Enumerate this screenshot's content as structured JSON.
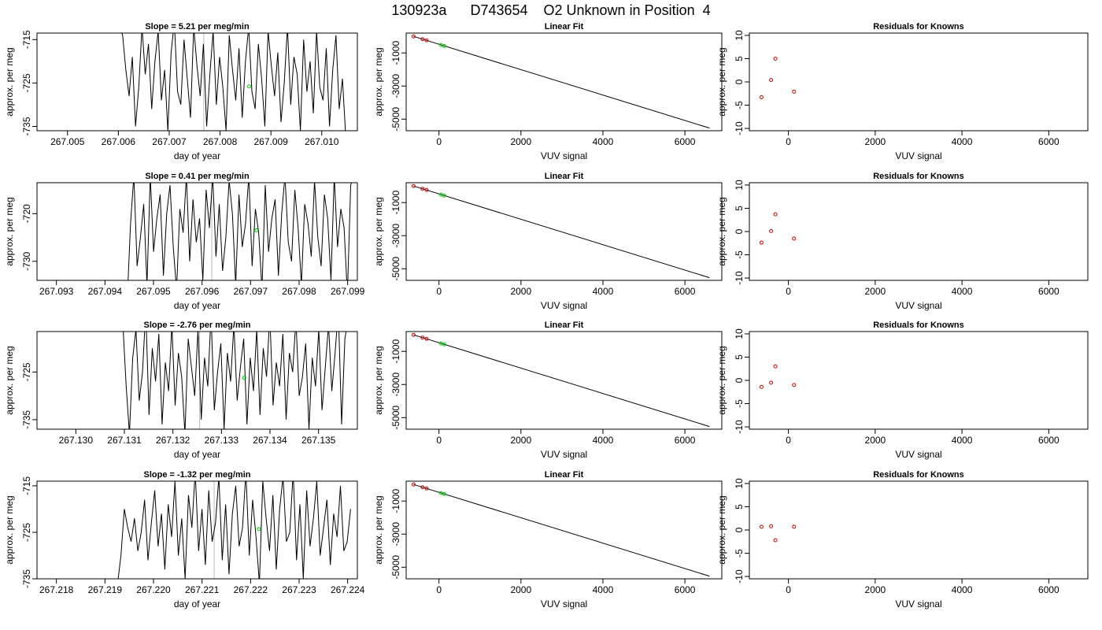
{
  "page_title": "130923a      D743654    O2 Unknown in Position  4",
  "colors": {
    "line": "#000000",
    "known_points": "#cc0000",
    "unknown_points": "#00cc00",
    "gray_marker": "#bbbbbb"
  },
  "chart_data": [
    {
      "type": "line",
      "panel": "timeseries",
      "row": 1,
      "title": "Slope =  5.21  per meg/min",
      "xlabel": "day of year",
      "ylabel": "approx. per meg",
      "xlim": [
        267.0044,
        267.0107
      ],
      "ylim": [
        -736,
        -713.5
      ],
      "xticks": [
        "267.005",
        "267.006",
        "267.007",
        "267.008",
        "267.009",
        "267.010"
      ],
      "yticks": [
        "-715",
        "-725",
        "-735"
      ],
      "gray_marker_x": 267.00768,
      "series": [
        {
          "x_start": 267.00602,
          "x_end": 267.01047,
          "values": [
            -712,
            -714,
            -722,
            -728,
            -719,
            -735,
            -726,
            -712,
            -723,
            -716,
            -731,
            -720,
            -713,
            -729,
            -722,
            -736,
            -718,
            -711,
            -727,
            -730,
            -715,
            -724,
            -733,
            -712,
            -721,
            -728,
            -716,
            -735,
            -723,
            -713,
            -730,
            -719,
            -726,
            -736,
            -714,
            -722,
            -729,
            -717,
            -733,
            -720,
            -712,
            -727,
            -731,
            -716,
            -724,
            -735,
            -713,
            -721,
            -728,
            -718,
            -734,
            -725,
            -712,
            -730,
            -719,
            -723,
            -736,
            -715,
            -727,
            -720,
            -732,
            -713,
            -726,
            -729,
            -717,
            -735,
            -722,
            -714,
            -731,
            -724,
            -737
          ]
        }
      ],
      "unknown_mean": {
        "x": 267.00857,
        "y": -725.8
      }
    },
    {
      "type": "scatter",
      "panel": "linear_fit",
      "row": 1,
      "title": "Linear Fit",
      "xlabel": "VUV signal",
      "ylabel": "approx. per meg",
      "xlim": [
        -800,
        6900
      ],
      "ylim": [
        -5700,
        200
      ],
      "xticks": [
        "0",
        "2000",
        "4000",
        "6000"
      ],
      "yticks": [
        "-1000",
        "-3000",
        "-5000"
      ],
      "fit_line": [
        [
          -620,
          0
        ],
        [
          6600,
          -5540
        ]
      ],
      "knowns": [
        [
          -620,
          0
        ],
        [
          -400,
          -170
        ],
        [
          -300,
          -240
        ]
      ],
      "unknowns": [
        [
          50,
          -520
        ],
        [
          130,
          -580
        ]
      ]
    },
    {
      "type": "scatter",
      "panel": "residuals",
      "row": 1,
      "title": "Residuals for Knowns",
      "xlabel": "VUV signal",
      "ylabel": "approx. per meg",
      "xlim": [
        -900,
        6900
      ],
      "ylim": [
        -10.5,
        10.5
      ],
      "xticks": [
        "0",
        "2000",
        "4000",
        "6000"
      ],
      "yticks": [
        "10",
        "5",
        "0",
        "-5",
        "-10"
      ],
      "knowns": [
        [
          -620,
          -3.3
        ],
        [
          -400,
          0.4
        ],
        [
          -300,
          5.0
        ],
        [
          130,
          -2.1
        ]
      ]
    },
    {
      "type": "line",
      "panel": "timeseries",
      "row": 2,
      "title": "Slope =  0.41  per meg/min",
      "xlabel": "day of year",
      "ylabel": "approx. per meg",
      "xlim": [
        267.0926,
        267.0992
      ],
      "ylim": [
        -734,
        -713.5
      ],
      "xticks": [
        "267.093",
        "267.094",
        "267.095",
        "267.096",
        "267.097",
        "267.098",
        "267.099"
      ],
      "yticks": [
        "-720",
        "-730"
      ],
      "gray_marker_x": 267.0962,
      "series": [
        {
          "x_start": 267.09446,
          "x_end": 267.09913,
          "values": [
            -738,
            -722,
            -712,
            -731,
            -725,
            -718,
            -735,
            -712,
            -728,
            -721,
            -716,
            -733,
            -720,
            -714,
            -727,
            -736,
            -719,
            -724,
            -712,
            -730,
            -717,
            -726,
            -721,
            -734,
            -715,
            -723,
            -712,
            -729,
            -718,
            -732,
            -725,
            -713,
            -720,
            -735,
            -716,
            -727,
            -722,
            -712,
            -731,
            -719,
            -724,
            -736,
            -714,
            -728,
            -721,
            -717,
            -733,
            -720,
            -712,
            -726,
            -730,
            -715,
            -723,
            -735,
            -718,
            -722,
            -729,
            -713,
            -725,
            -731,
            -716,
            -721,
            -734,
            -712,
            -727,
            -719,
            -723,
            -737,
            -714,
            -712
          ]
        }
      ],
      "unknown_mean": {
        "x": 267.09712,
        "y": -723.5
      }
    },
    {
      "type": "scatter",
      "panel": "linear_fit",
      "row": 2,
      "title": "Linear Fit",
      "xlabel": "VUV signal",
      "ylabel": "approx. per meg",
      "xlim": [
        -800,
        6900
      ],
      "ylim": [
        -5700,
        200
      ],
      "xticks": [
        "0",
        "2000",
        "4000",
        "6000"
      ],
      "yticks": [
        "-1000",
        "-3000",
        "-5000"
      ],
      "fit_line": [
        [
          -620,
          0
        ],
        [
          6600,
          -5540
        ]
      ],
      "knowns": [
        [
          -620,
          0
        ],
        [
          -400,
          -170
        ],
        [
          -300,
          -240
        ]
      ],
      "unknowns": [
        [
          50,
          -520
        ],
        [
          130,
          -580
        ]
      ]
    },
    {
      "type": "scatter",
      "panel": "residuals",
      "row": 2,
      "title": "Residuals for Knowns",
      "xlabel": "VUV signal",
      "ylabel": "approx. per meg",
      "xlim": [
        -900,
        6900
      ],
      "ylim": [
        -10.5,
        10.5
      ],
      "xticks": [
        "0",
        "2000",
        "4000",
        "6000"
      ],
      "yticks": [
        "10",
        "5",
        "0",
        "-5",
        "-10"
      ],
      "knowns": [
        [
          -620,
          -2.4
        ],
        [
          -400,
          0.1
        ],
        [
          -300,
          3.7
        ],
        [
          130,
          -1.5
        ]
      ]
    },
    {
      "type": "line",
      "panel": "timeseries",
      "row": 3,
      "title": "Slope =  -2.76  per meg/min",
      "xlabel": "day of year",
      "ylabel": "approx. per meg",
      "xlim": [
        267.1292,
        267.1358
      ],
      "ylim": [
        -737,
        -716.5
      ],
      "xticks": [
        "267.130",
        "267.131",
        "267.132",
        "267.133",
        "267.134",
        "267.135"
      ],
      "yticks": [
        "-725",
        "-735"
      ],
      "gray_marker_x": 267.13255,
      "series": [
        {
          "x_start": 267.13097,
          "x_end": 267.13561,
          "values": [
            -715,
            -728,
            -738,
            -722,
            -716,
            -731,
            -725,
            -712,
            -734,
            -720,
            -727,
            -717,
            -736,
            -723,
            -729,
            -715,
            -732,
            -721,
            -726,
            -738,
            -718,
            -724,
            -730,
            -716,
            -735,
            -722,
            -728,
            -713,
            -733,
            -725,
            -719,
            -737,
            -721,
            -727,
            -715,
            -731,
            -724,
            -718,
            -736,
            -722,
            -729,
            -716,
            -734,
            -720,
            -726,
            -713,
            -732,
            -723,
            -728,
            -717,
            -735,
            -721,
            -725,
            -714,
            -730,
            -726,
            -719,
            -737,
            -722,
            -728,
            -716,
            -733,
            -724,
            -715,
            -729,
            -721,
            -712,
            -736,
            -718,
            -714
          ]
        }
      ],
      "unknown_mean": {
        "x": 267.13347,
        "y": -726.2
      }
    },
    {
      "type": "scatter",
      "panel": "linear_fit",
      "row": 3,
      "title": "Linear Fit",
      "xlabel": "VUV signal",
      "ylabel": "approx. per meg",
      "xlim": [
        -800,
        6900
      ],
      "ylim": [
        -5700,
        200
      ],
      "xticks": [
        "0",
        "2000",
        "4000",
        "6000"
      ],
      "yticks": [
        "-1000",
        "-3000",
        "-5000"
      ],
      "fit_line": [
        [
          -620,
          0
        ],
        [
          6600,
          -5540
        ]
      ],
      "knowns": [
        [
          -620,
          0
        ],
        [
          -400,
          -170
        ],
        [
          -300,
          -240
        ]
      ],
      "unknowns": [
        [
          50,
          -520
        ],
        [
          130,
          -580
        ]
      ]
    },
    {
      "type": "scatter",
      "panel": "residuals",
      "row": 3,
      "title": "Residuals for Knowns",
      "xlabel": "VUV signal",
      "ylabel": "approx. per meg",
      "xlim": [
        -900,
        6900
      ],
      "ylim": [
        -10.5,
        10.5
      ],
      "xticks": [
        "0",
        "2000",
        "4000",
        "6000"
      ],
      "yticks": [
        "10",
        "5",
        "0",
        "-5",
        "-10"
      ],
      "knowns": [
        [
          -620,
          -1.4
        ],
        [
          -400,
          -0.5
        ],
        [
          -300,
          3.0
        ],
        [
          130,
          -1.0
        ]
      ]
    },
    {
      "type": "line",
      "panel": "timeseries",
      "row": 4,
      "title": "Slope =  -1.32  per meg/min",
      "xlabel": "day of year",
      "ylabel": "approx. per meg",
      "xlim": [
        267.2176,
        267.2242
      ],
      "ylim": [
        -735,
        -714
      ],
      "xticks": [
        "267.218",
        "267.219",
        "267.220",
        "267.221",
        "267.222",
        "267.223",
        "267.224"
      ],
      "yticks": [
        "-715",
        "-725",
        "-735"
      ],
      "gray_marker_x": 267.22125,
      "series": [
        {
          "x_start": 267.21926,
          "x_end": 267.22406,
          "values": [
            -736,
            -730,
            -720,
            -724,
            -727,
            -722,
            -729,
            -725,
            -718,
            -731,
            -723,
            -716,
            -728,
            -721,
            -733,
            -719,
            -726,
            -714,
            -730,
            -722,
            -735,
            -717,
            -724,
            -712,
            -729,
            -720,
            -732,
            -716,
            -727,
            -723,
            -713,
            -731,
            -719,
            -734,
            -721,
            -715,
            -728,
            -724,
            -712,
            -730,
            -718,
            -726,
            -736,
            -714,
            -722,
            -729,
            -717,
            -733,
            -720,
            -713,
            -727,
            -725,
            -712,
            -731,
            -719,
            -735,
            -716,
            -728,
            -722,
            -714,
            -730,
            -724,
            -718,
            -732,
            -721,
            -726,
            -715,
            -729,
            -727,
            -720
          ]
        }
      ],
      "unknown_mean": {
        "x": 267.22217,
        "y": -724.3
      }
    },
    {
      "type": "scatter",
      "panel": "linear_fit",
      "row": 4,
      "title": "Linear Fit",
      "xlabel": "VUV signal",
      "ylabel": "approx. per meg",
      "xlim": [
        -800,
        6900
      ],
      "ylim": [
        -5700,
        200
      ],
      "xticks": [
        "0",
        "2000",
        "4000",
        "6000"
      ],
      "yticks": [
        "-1000",
        "-3000",
        "-5000"
      ],
      "fit_line": [
        [
          -620,
          0
        ],
        [
          6600,
          -5540
        ]
      ],
      "knowns": [
        [
          -620,
          0
        ],
        [
          -400,
          -170
        ],
        [
          -300,
          -240
        ]
      ],
      "unknowns": [
        [
          50,
          -520
        ],
        [
          130,
          -580
        ]
      ]
    },
    {
      "type": "scatter",
      "panel": "residuals",
      "row": 4,
      "title": "Residuals for Knowns",
      "xlabel": "VUV signal",
      "ylabel": "approx. per meg",
      "xlim": [
        -900,
        6900
      ],
      "ylim": [
        -10.5,
        10.5
      ],
      "xticks": [
        "0",
        "2000",
        "4000",
        "6000"
      ],
      "yticks": [
        "10",
        "5",
        "0",
        "-5",
        "-10"
      ],
      "knowns": [
        [
          -620,
          0.7
        ],
        [
          -400,
          0.8
        ],
        [
          -300,
          -2.2
        ],
        [
          130,
          0.7
        ]
      ]
    }
  ]
}
